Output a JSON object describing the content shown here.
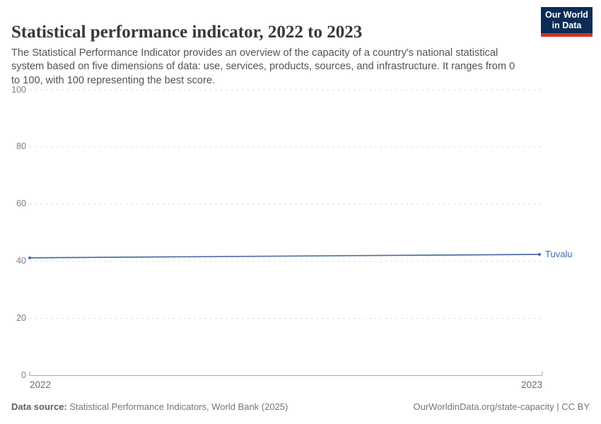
{
  "header": {
    "title": "Statistical performance indicator, 2022 to 2023",
    "subtitle": "The Statistical Performance Indicator provides an overview of the capacity of a country's national statistical system based on five dimensions of data: use, services, products, sources, and infrastructure. It ranges from 0 to 100, with 100 representing the best score.",
    "logo": {
      "line1": "Our World",
      "line2": "in Data",
      "bg_color": "#0c2c56",
      "bar_color": "#cc342b"
    }
  },
  "chart_data": {
    "type": "line",
    "title": "Statistical performance indicator, 2022 to 2023",
    "x": [
      2022,
      2023
    ],
    "series": [
      {
        "name": "Tuvalu",
        "values": [
          41.2,
          42.4
        ],
        "color": "#4e6ea3",
        "label_color": "#3d6aad"
      }
    ],
    "xlabel": "",
    "ylabel": "",
    "ylim": [
      0,
      100
    ],
    "yticks": [
      0,
      20,
      40,
      60,
      80,
      100
    ],
    "xticks": [
      "2022",
      "2023"
    ],
    "grid": "horizontal dashed gridlines, solid baseline at 0 with upward end caps",
    "legend": "entity name label at right end of line",
    "gridline_color": "#dcdcdc",
    "axis_color": "#a9a9a9"
  },
  "footer": {
    "datasource_label": "Data source:",
    "datasource_text": " Statistical Performance Indicators, World Bank (2025)",
    "link_text": "OurWorldinData.org/state-capacity | CC BY"
  }
}
